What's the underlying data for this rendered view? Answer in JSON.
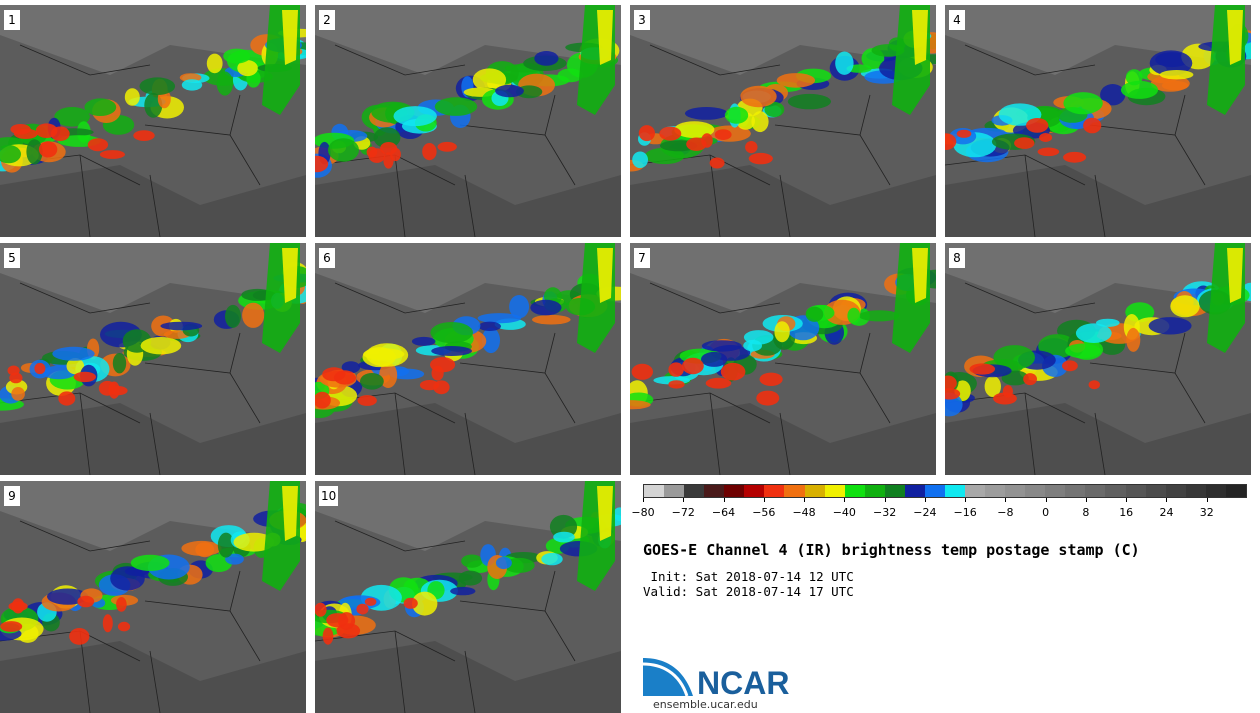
{
  "panels": [
    {
      "label": "1"
    },
    {
      "label": "2"
    },
    {
      "label": "3"
    },
    {
      "label": "4"
    },
    {
      "label": "5"
    },
    {
      "label": "6"
    },
    {
      "label": "7"
    },
    {
      "label": "8"
    },
    {
      "label": "9"
    },
    {
      "label": "10"
    }
  ],
  "colorbar": {
    "colors": [
      "#d4d4d4",
      "#9a9a9a",
      "#3a3a3a",
      "#4a1a1a",
      "#6e0000",
      "#b40000",
      "#f03010",
      "#f07010",
      "#d8b000",
      "#f0f000",
      "#10e010",
      "#10b010",
      "#108020",
      "#1020a0",
      "#1070f0",
      "#10e8f0",
      "#a8a8a8",
      "#9c9c9c",
      "#929292",
      "#888888",
      "#7e7e7e",
      "#747474",
      "#6a6a6a",
      "#606060",
      "#565656",
      "#4c4c4c",
      "#424242",
      "#383838",
      "#2e2e2e",
      "#242424"
    ],
    "tick_labels": [
      "−80",
      "−72",
      "−64",
      "−56",
      "−48",
      "−40",
      "−32",
      "−24",
      "−16",
      "−8",
      "0",
      "8",
      "16",
      "24",
      "32"
    ]
  },
  "title": "GOES-E Channel 4 (IR) brightness temp postage stamp (C)",
  "init": " Init: Sat 2018-07-14 12 UTC",
  "valid": "Valid: Sat 2018-07-14 17 UTC",
  "logo_text": "NCAR",
  "site": "ensemble.ucar.edu"
}
